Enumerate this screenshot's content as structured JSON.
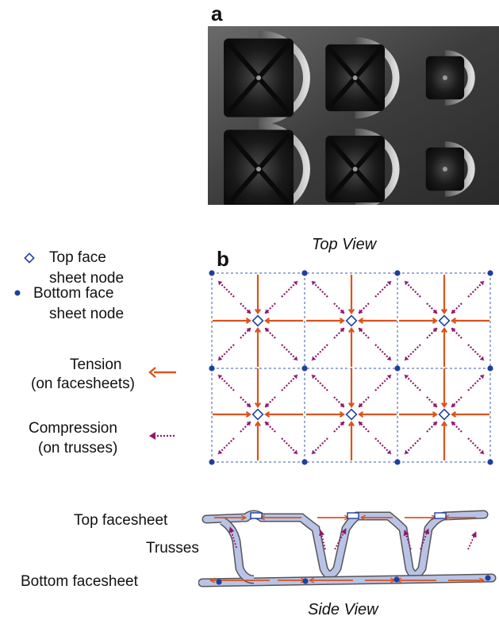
{
  "panel_a": {
    "letter": "a"
  },
  "panel_b": {
    "letter": "b",
    "top_view_title": "Top View",
    "side_view_title": "Side View"
  },
  "legend": {
    "top_node": {
      "line1": "Top face",
      "line2": "sheet node"
    },
    "bottom_node": {
      "line1": "Bottom face",
      "line2": "sheet node"
    },
    "tension": {
      "line1": "Tension",
      "line2": "(on facesheets)"
    },
    "compression": {
      "line1": "Compression",
      "line2": "(on trusses)"
    }
  },
  "side_labels": {
    "top": "Top facesheet",
    "trusses": "Trusses",
    "bottom": "Bottom facesheet"
  },
  "colors": {
    "tension": "#d9541e",
    "compression": "#8e1a6b",
    "node_fill": "#1f3fa0",
    "grid": "#3a5ab0",
    "sheet": "#b9c3e6"
  }
}
